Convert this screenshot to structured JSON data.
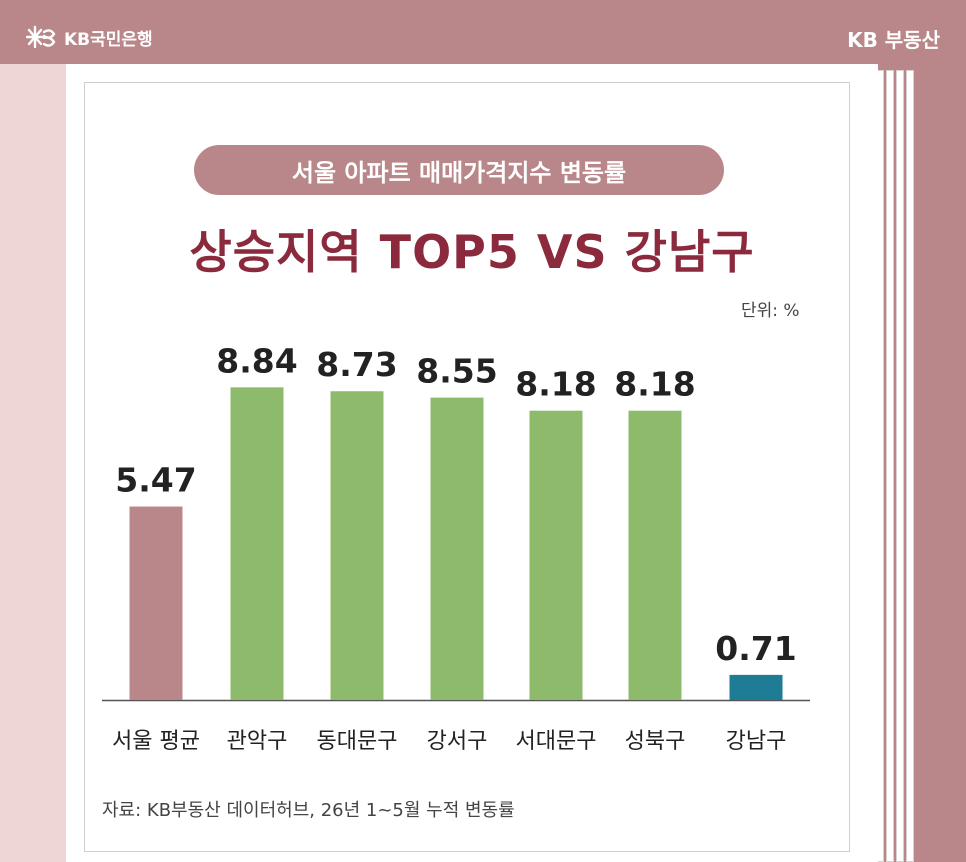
{
  "header": {
    "bank_name": "KB국민은행",
    "brand": "KB 부동산"
  },
  "subtitle": "서울 아파트 매매가격지수 변동률",
  "title": "상승지역 TOP5 VS 강남구",
  "unit": "단위: %",
  "source": "자료: KB부동산 데이터허브, 26년 1~5월 누적 변동률",
  "colors": {
    "background": "#b98789",
    "seoul_average_bar": "#b98789",
    "top5_bar": "#8dbb6b",
    "gangnam_bar": "#1e7c95",
    "title": "#8a2a3c"
  },
  "chart_data": {
    "type": "bar",
    "categories": [
      "서울 평균",
      "관악구",
      "동대문구",
      "강서구",
      "서대문구",
      "성북구",
      "강남구"
    ],
    "values": [
      5.47,
      8.84,
      8.73,
      8.55,
      8.18,
      8.18,
      0.71
    ],
    "data_labels": [
      "5.47",
      "8.84",
      "8.73",
      "8.55",
      "8.18",
      "8.18",
      "0.71"
    ],
    "bar_colors": [
      "#b98789",
      "#8dbb6b",
      "#8dbb6b",
      "#8dbb6b",
      "#8dbb6b",
      "#8dbb6b",
      "#1e7c95"
    ],
    "ylim": [
      0,
      9.5
    ],
    "grid": false,
    "legend": "none"
  }
}
